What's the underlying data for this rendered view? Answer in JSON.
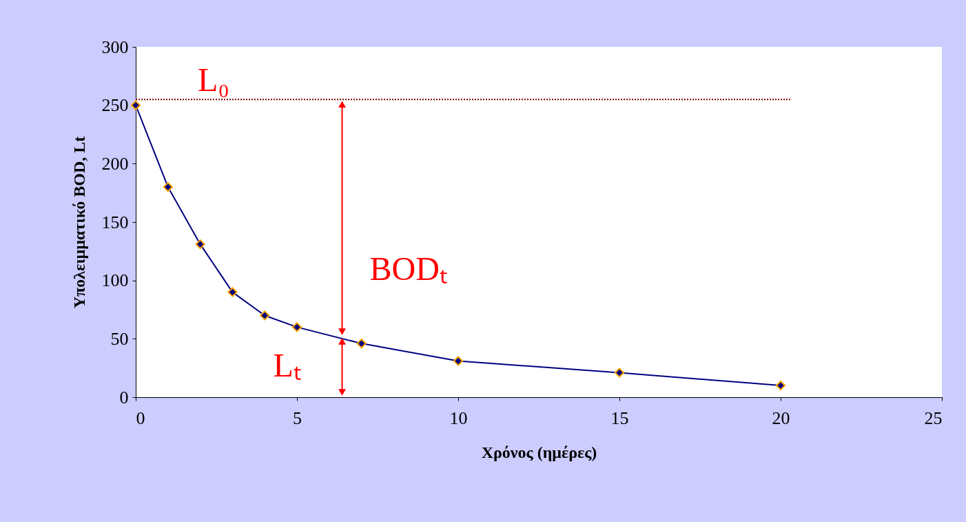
{
  "chart_data": {
    "type": "line",
    "xlabel": "Χρόνος (ημέρες)",
    "ylabel": "Υπολειμματικό BOD, Lt",
    "x": [
      0,
      1,
      2,
      3,
      4,
      5,
      7,
      10,
      15,
      20
    ],
    "series": [
      {
        "color": "#000080",
        "values": [
          250,
          180,
          131,
          90,
          70,
          60,
          46,
          31,
          21,
          10
        ]
      }
    ],
    "marker": "diamond",
    "line_style": "solid",
    "grid": false,
    "xlim": [
      0,
      25
    ],
    "xticks": [
      0,
      5,
      10,
      15,
      20,
      25
    ],
    "ylim": [
      0,
      300
    ],
    "yticks": [
      0,
      50,
      100,
      150,
      200,
      250,
      300
    ],
    "ref_lines": [
      {
        "axis": "y",
        "value": 255,
        "label": "L₀",
        "color": "#800000",
        "line_style": "dotted"
      }
    ],
    "annotations": [
      "BODₜ",
      {
        "text": "Lₜ",
        "x": 6.4,
        "y": 52
      }
    ]
  }
}
